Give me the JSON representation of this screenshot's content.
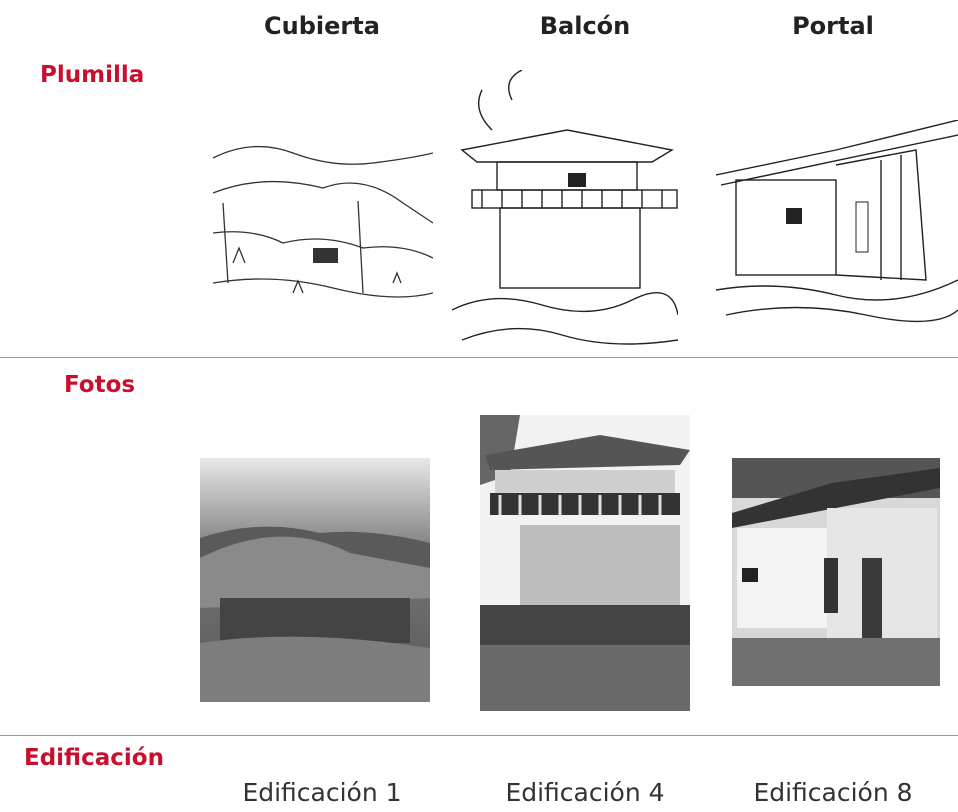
{
  "header": {
    "columns": [
      "Cubierta",
      "Balcón",
      "Portal"
    ]
  },
  "rows": [
    {
      "label": "Plumilla"
    },
    {
      "label": "Fotos"
    },
    {
      "label": "Edificación",
      "cells": [
        "Edificación 1",
        "Edificación 4",
        "Edificación 8"
      ]
    }
  ]
}
